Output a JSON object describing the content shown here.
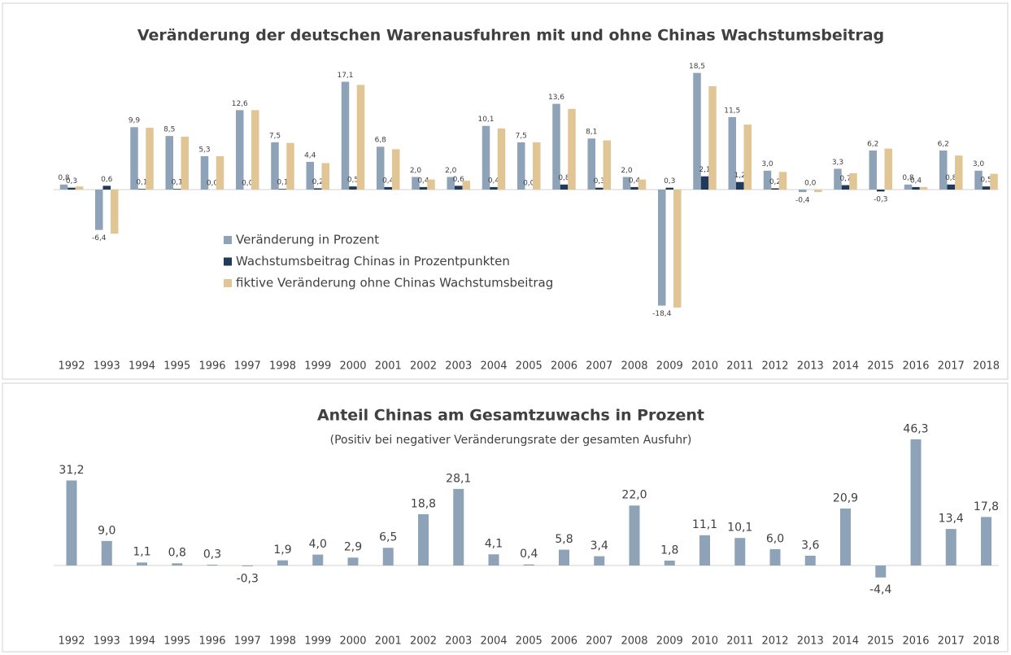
{
  "chart_data": [
    {
      "type": "bar",
      "title": "Veränderung der deutschen Warenausfuhren mit und ohne Chinas Wachstumsbeitrag",
      "categories": [
        "1992",
        "1993",
        "1994",
        "1995",
        "1996",
        "1997",
        "1998",
        "1999",
        "2000",
        "2001",
        "2002",
        "2003",
        "2004",
        "2005",
        "2006",
        "2007",
        "2008",
        "2009",
        "2010",
        "2011",
        "2012",
        "2013",
        "2014",
        "2015",
        "2016",
        "2017",
        "2018"
      ],
      "series": [
        {
          "name": "Veränderung in Prozent",
          "color": "#8fa3b8",
          "values": [
            0.8,
            -6.4,
            9.9,
            8.5,
            5.3,
            12.6,
            7.5,
            4.4,
            17.1,
            6.8,
            2.0,
            2.0,
            10.1,
            7.5,
            13.6,
            8.1,
            2.0,
            -18.4,
            18.5,
            11.5,
            3.0,
            -0.4,
            3.3,
            6.2,
            0.8,
            6.2,
            3.0
          ],
          "value_labels": [
            "0,8",
            "-6,4",
            "9,9",
            "8,5",
            "5,3",
            "12,6",
            "7,5",
            "4,4",
            "17,1",
            "6,8",
            "2,0",
            "2,0",
            "10,1",
            "7,5",
            "13,6",
            "8,1",
            "2,0",
            "-18,4",
            "18,5",
            "11,5",
            "3,0",
            "-0,4",
            "3,3",
            "6,2",
            "0,8",
            "6,2",
            "3,0"
          ]
        },
        {
          "name": "Wachstumsbeitrag Chinas in Prozentpunkten",
          "color": "#1f3a5a",
          "values": [
            0.3,
            0.6,
            0.1,
            0.1,
            0.0,
            0.0,
            0.1,
            0.2,
            0.5,
            0.4,
            0.4,
            0.6,
            0.4,
            0.0,
            0.8,
            0.3,
            0.4,
            0.3,
            2.1,
            1.2,
            0.2,
            0.0,
            0.7,
            -0.3,
            0.4,
            0.8,
            0.5
          ],
          "value_labels": [
            "0,3",
            "0,6",
            "0,1",
            "0,1",
            "0,0",
            "0,0",
            "0,1",
            "0,2",
            "0,5",
            "0,4",
            "0,4",
            "0,6",
            "0,4",
            "0,0",
            "0,8",
            "0,3",
            "0,4",
            "0,3",
            "2,1",
            "1,2",
            "0,2",
            "0,0",
            "0,7",
            "-0,3",
            "0,4",
            "0,8",
            "0,5"
          ]
        },
        {
          "name": "fiktive Veränderung ohne Chinas Wachstumsbeitrag",
          "color": "#e2c595",
          "values": [
            0.5,
            -7.0,
            9.8,
            8.4,
            5.3,
            12.6,
            7.4,
            4.2,
            16.6,
            6.4,
            1.6,
            1.4,
            9.7,
            7.5,
            12.8,
            7.8,
            1.6,
            -18.7,
            16.4,
            10.3,
            2.8,
            -0.4,
            2.6,
            6.5,
            0.4,
            5.4,
            2.5
          ]
        }
      ],
      "ylim": [
        -20,
        20
      ]
    },
    {
      "type": "bar",
      "title": "Anteil Chinas am Gesamtzuwachs in Prozent",
      "subtitle": "(Positiv bei negativer Veränderungsrate der gesamten Ausfuhr)",
      "categories": [
        "1992",
        "1993",
        "1994",
        "1995",
        "1996",
        "1997",
        "1998",
        "1999",
        "2000",
        "2001",
        "2002",
        "2003",
        "2004",
        "2005",
        "2006",
        "2007",
        "2008",
        "2009",
        "2010",
        "2011",
        "2012",
        "2013",
        "2014",
        "2015",
        "2016",
        "2017",
        "2018"
      ],
      "values": [
        31.2,
        9.0,
        1.1,
        0.8,
        0.3,
        -0.3,
        1.9,
        4.0,
        2.9,
        6.5,
        18.8,
        28.1,
        4.1,
        0.4,
        5.8,
        3.4,
        22.0,
        1.8,
        11.1,
        10.1,
        6.0,
        3.6,
        20.9,
        -4.4,
        46.3,
        13.4,
        17.8
      ],
      "value_labels": [
        "31,2",
        "9,0",
        "1,1",
        "0,8",
        "0,3",
        "-0,3",
        "1,9",
        "4,0",
        "2,9",
        "6,5",
        "18,8",
        "28,1",
        "4,1",
        "0,4",
        "5,8",
        "3,4",
        "22,0",
        "1,8",
        "11,1",
        "10,1",
        "6,0",
        "3,6",
        "20,9",
        "-4,4",
        "46,3",
        "13,4",
        "17,8"
      ],
      "color": "#8fa3b8",
      "ylim": [
        -10,
        50
      ]
    }
  ]
}
